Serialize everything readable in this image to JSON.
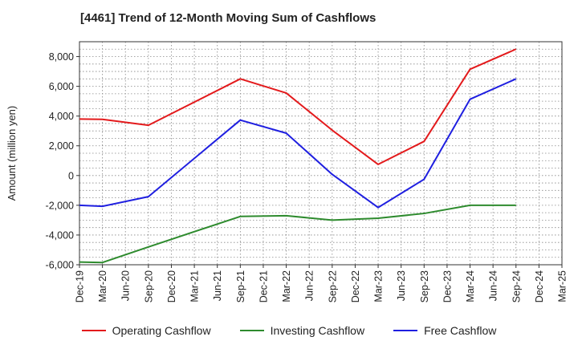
{
  "title": "[4461]  Trend of 12-Month Moving Sum of Cashflows",
  "chart_data": {
    "type": "line",
    "title": "[4461]  Trend of 12-Month Moving Sum of Cashflows",
    "xlabel": "",
    "ylabel": "Amount (million yen)",
    "ylim": [
      -6000,
      9000
    ],
    "yticks": [
      -6000,
      -4000,
      -2000,
      0,
      2000,
      4000,
      6000,
      8000
    ],
    "ytick_labels": [
      "-6,000",
      "-4,000",
      "-2,000",
      "0",
      "2,000",
      "4,000",
      "6,000",
      "8,000"
    ],
    "categories": [
      "Dec-19",
      "Mar-20",
      "Jun-20",
      "Sep-20",
      "Dec-20",
      "Mar-21",
      "Jun-21",
      "Sep-21",
      "Dec-21",
      "Mar-22",
      "Jun-22",
      "Sep-22",
      "Dec-22",
      "Mar-23",
      "Jun-23",
      "Sep-23",
      "Dec-23",
      "Mar-24",
      "Jun-24",
      "Sep-24",
      "Dec-24",
      "Mar-25"
    ],
    "grid": true,
    "legend_position": "bottom",
    "series": [
      {
        "name": "Operating Cashflow",
        "color": "#e31a1c",
        "points": [
          [
            "Dec-19",
            3800
          ],
          [
            "Mar-20",
            3780
          ],
          [
            "Sep-20",
            3380
          ],
          [
            "Sep-21",
            6500
          ],
          [
            "Mar-22",
            5550
          ],
          [
            "Sep-22",
            3050
          ],
          [
            "Mar-23",
            750
          ],
          [
            "Sep-23",
            2300
          ],
          [
            "Mar-24",
            7150
          ],
          [
            "Sep-24",
            8500
          ]
        ]
      },
      {
        "name": "Investing Cashflow",
        "color": "#2e8b2e",
        "points": [
          [
            "Dec-19",
            -5820
          ],
          [
            "Mar-20",
            -5850
          ],
          [
            "Sep-20",
            -4800
          ],
          [
            "Sep-21",
            -2750
          ],
          [
            "Mar-22",
            -2700
          ],
          [
            "Sep-22",
            -3000
          ],
          [
            "Mar-23",
            -2870
          ],
          [
            "Sep-23",
            -2550
          ],
          [
            "Mar-24",
            -2000
          ],
          [
            "Sep-24",
            -2000
          ]
        ]
      },
      {
        "name": "Free Cashflow",
        "color": "#1f1fe0",
        "points": [
          [
            "Dec-19",
            -2000
          ],
          [
            "Mar-20",
            -2070
          ],
          [
            "Sep-20",
            -1420
          ],
          [
            "Sep-21",
            3730
          ],
          [
            "Mar-22",
            2850
          ],
          [
            "Sep-22",
            80
          ],
          [
            "Mar-23",
            -2150
          ],
          [
            "Sep-23",
            -250
          ],
          [
            "Mar-24",
            5130
          ],
          [
            "Sep-24",
            6500
          ]
        ]
      }
    ]
  }
}
